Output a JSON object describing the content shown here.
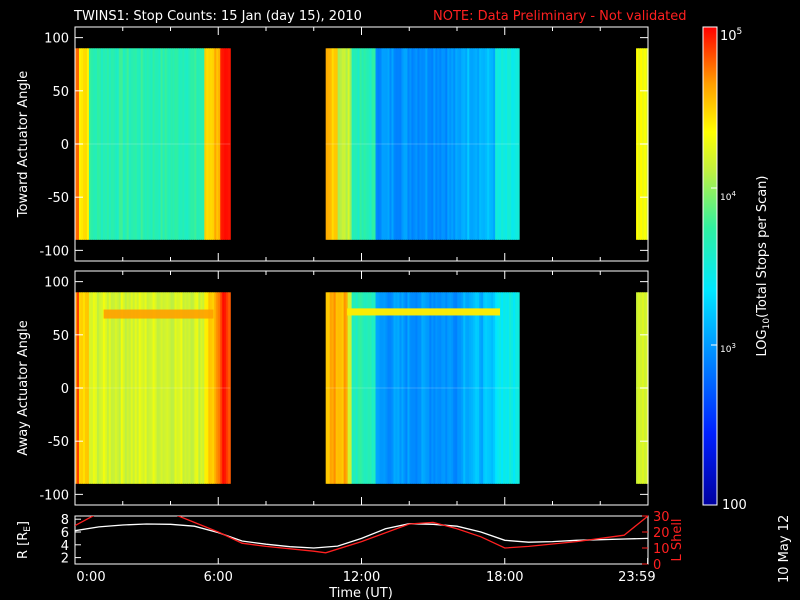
{
  "header": {
    "title": "TWINS1: Stop Counts: 15 Jan (day  15), 2010",
    "note": "NOTE: Data Preliminary - Not validated",
    "note_color": "#ff2020"
  },
  "side_date": "10 May 12",
  "chart_data": [
    {
      "type": "heatmap",
      "panel": "toward",
      "ylabel": "Toward Actuator Angle",
      "ylim": [
        -110,
        110
      ],
      "yticks": [
        "100",
        "50",
        "0",
        "-50",
        "-100"
      ],
      "xlim_hours": [
        0,
        24
      ],
      "data_intervals_hours": [
        [
          -0.2,
          6.5
        ],
        [
          10.5,
          18.6
        ],
        [
          23.5,
          24
        ]
      ],
      "angle_range": [
        -90,
        90
      ],
      "color_scale": "log10 counts, 100 to 100000"
    },
    {
      "type": "heatmap",
      "panel": "away",
      "ylabel": "Away Actuator Angle",
      "ylim": [
        -110,
        110
      ],
      "yticks": [
        "100",
        "50",
        "0",
        "-50",
        "-100"
      ],
      "xlim_hours": [
        0,
        24
      ],
      "data_intervals_hours": [
        [
          -0.2,
          6.5
        ],
        [
          10.5,
          18.6
        ],
        [
          23.5,
          24
        ]
      ],
      "angle_range": [
        -90,
        90
      ],
      "color_scale": "log10 counts, 100 to 100000"
    },
    {
      "type": "line",
      "panel": "orbit",
      "ylabel_left": "R [R",
      "ylabel_left_sub": "E",
      "ylabel_left_end": "]",
      "ylabel_right": "L Shell",
      "ylim_left": [
        1,
        8.5
      ],
      "ylim_right": [
        0,
        30
      ],
      "yticks_left": [
        "8",
        "6",
        "4",
        "2"
      ],
      "yticks_right": [
        "30",
        "20",
        "10",
        "0"
      ],
      "xticks": [
        "0:00",
        "6:00",
        "12:00",
        "18:00",
        "23:59"
      ],
      "xlabel": "Time (UT)",
      "series": [
        {
          "color": "#ffffff",
          "axis": "left",
          "x": [
            0,
            1,
            2,
            3,
            4,
            5,
            6,
            7,
            8,
            9,
            10,
            11,
            12,
            13,
            14,
            15,
            16,
            17,
            18,
            19,
            20,
            21,
            22,
            23,
            24
          ],
          "y": [
            6.2,
            6.8,
            7.1,
            7.25,
            7.2,
            6.9,
            5.9,
            4.6,
            4.1,
            3.7,
            3.5,
            3.8,
            5.0,
            6.5,
            7.3,
            7.2,
            6.9,
            6.0,
            4.7,
            4.4,
            4.5,
            4.7,
            4.8,
            4.9,
            5.0
          ]
        },
        {
          "color": "#ff2020",
          "axis": "right",
          "x": [
            0,
            1,
            4,
            6,
            7,
            8,
            10,
            10.5,
            12,
            14,
            15,
            16,
            17,
            18,
            19,
            21,
            23,
            24
          ],
          "y": [
            24,
            32,
            32,
            20,
            13,
            11,
            8,
            7,
            14,
            25,
            26,
            22,
            17,
            10,
            11,
            14,
            18,
            30
          ]
        }
      ]
    }
  ],
  "colorbar": {
    "label": "LOG",
    "label_sub": "10",
    "label_rest": "(Total Stops per Scan)",
    "tick_top_base": "10",
    "tick_top_exp": "5",
    "tick_mid_base": "10",
    "tick_mid_exp": "4",
    "tick_low_base": "10",
    "tick_low_exp": "3",
    "tick_bottom": "100",
    "range": [
      100,
      100000
    ]
  }
}
